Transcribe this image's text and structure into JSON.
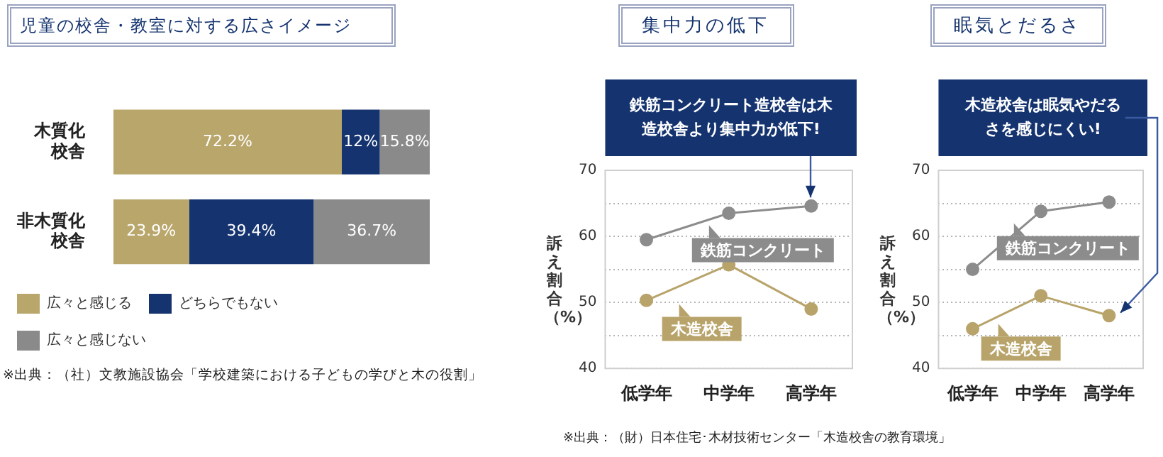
{
  "chart_data": [
    {
      "type": "bar",
      "title": "児童の校舎・教室に対する広さイメージ",
      "orientation": "horizontal",
      "stacked": true,
      "legend": "bottom",
      "categories": [
        "木質化校舎",
        "非木質化校舎"
      ],
      "series": [
        {
          "name": "広々と感じる",
          "color": "#b9a66b",
          "values": [
            72.2,
            23.9
          ],
          "value_labels": [
            "72.2%",
            "23.9%"
          ]
        },
        {
          "name": "どちらでもない",
          "color": "#14336f",
          "values": [
            12,
            39.4
          ],
          "value_labels": [
            "12%",
            "39.4%"
          ]
        },
        {
          "name": "広々と感じない",
          "color": "#8a8a8a",
          "values": [
            15.8,
            36.7
          ],
          "value_labels": [
            "15.8%",
            "36.7%"
          ]
        }
      ],
      "annotations": [
        "※出典：（社）文教施設協会「学校建築における子どもの学びと木の役割」"
      ]
    },
    {
      "type": "line",
      "title": "集中力の低下",
      "ylabel": "訴え割合（%）",
      "legend": "right",
      "categories": [
        "低学年",
        "中学年",
        "高学年"
      ],
      "ylim": [
        40,
        70
      ],
      "yticks": [
        40,
        {
          "value": 45,
          "label": null
        },
        50,
        {
          "value": 55,
          "label": null
        },
        60,
        {
          "value": 65,
          "label": null
        },
        70
      ],
      "grid": "y",
      "marker": "circle",
      "series": [
        {
          "name": "鉄筋コンクリート",
          "color": "#8c8c8c",
          "values": [
            59.5,
            63.5,
            64.6
          ]
        },
        {
          "name": "木造校舎",
          "color": "#b8a46a",
          "values": [
            50.3,
            55.7,
            49.0
          ]
        }
      ],
      "annotations": [
        {
          "text": "鉄筋コンクリート造校舎は木造校舎より集中力が低下!",
          "x": "高学年",
          "y": 64.6
        },
        "※出典：（財）日本住宅･木材技術センター「木造校舎の教育環境」"
      ]
    },
    {
      "type": "line",
      "title": "眠気とだるさ",
      "ylabel": "訴え割合（%）",
      "legend": "right",
      "categories": [
        "低学年",
        "中学年",
        "高学年"
      ],
      "ylim": [
        40,
        70
      ],
      "yticks": [
        40,
        {
          "value": 45,
          "label": null
        },
        50,
        {
          "value": 55,
          "label": null
        },
        60,
        {
          "value": 65,
          "label": null
        },
        70
      ],
      "grid": "y",
      "marker": "circle",
      "series": [
        {
          "name": "鉄筋コンクリート",
          "color": "#8c8c8c",
          "values": [
            55.0,
            63.8,
            65.2
          ]
        },
        {
          "name": "木造校舎",
          "color": "#b8a46a",
          "values": [
            46.0,
            51.0,
            48.0
          ]
        }
      ],
      "annotations": [
        {
          "text": "木造校舎は眠気やだるさを感じにくい!",
          "x": "高学年",
          "y": 48.0
        }
      ]
    }
  ]
}
